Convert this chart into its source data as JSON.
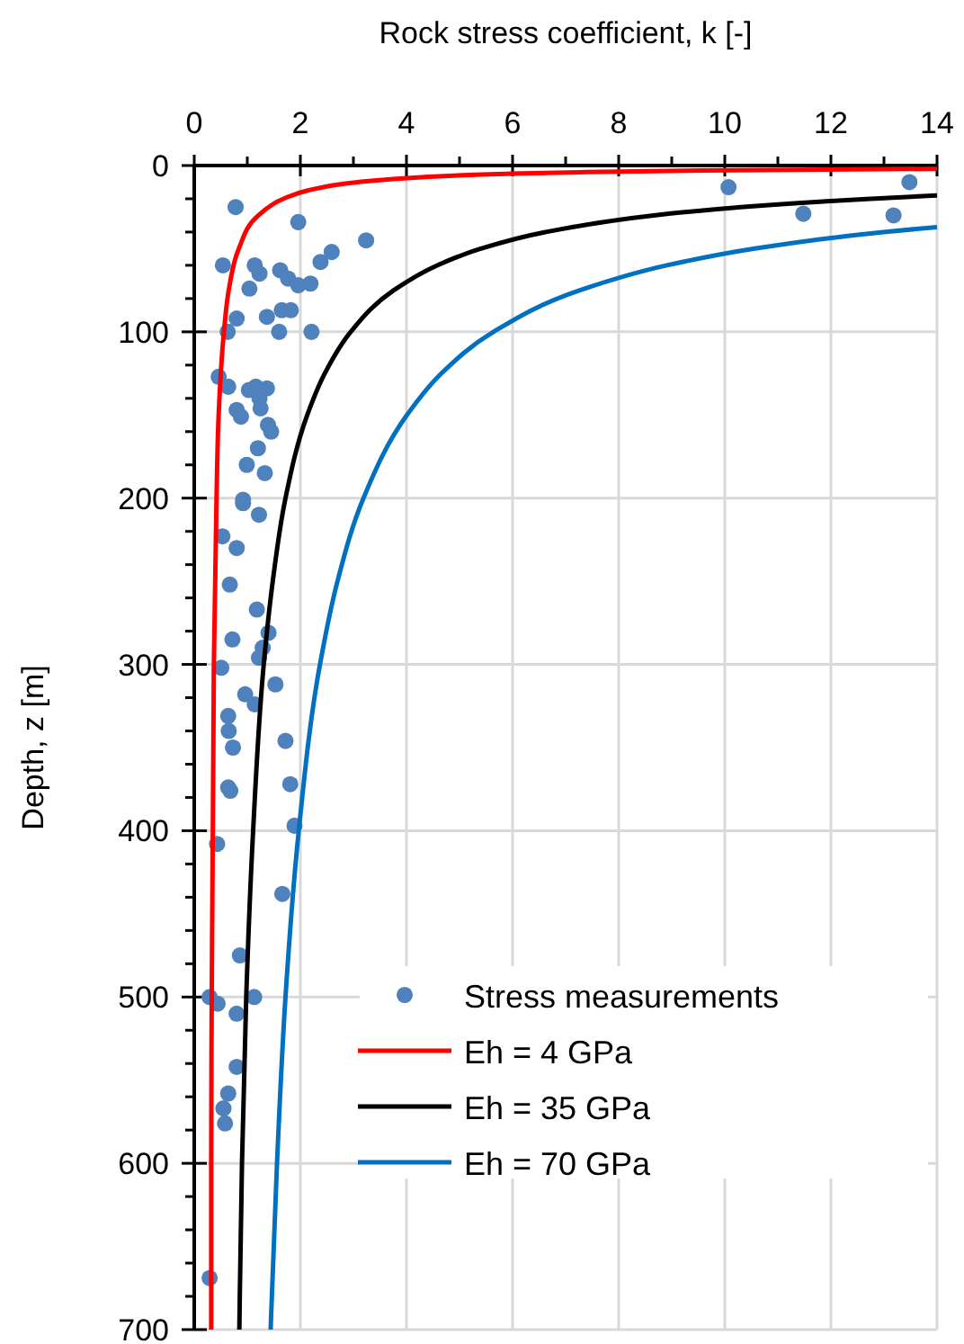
{
  "chart_data": {
    "type": "line",
    "xlabel": "Rock stress coefficient, k [-]",
    "ylabel": "Depth, z [m]",
    "xlim": [
      0,
      14
    ],
    "xticks": [
      0,
      {
        "value": 1,
        "label": null
      },
      2,
      {
        "value": 3,
        "label": null
      },
      4,
      {
        "value": 5,
        "label": null
      },
      6,
      {
        "value": 7,
        "label": null
      },
      8,
      {
        "value": 9,
        "label": null
      },
      10,
      {
        "value": 11,
        "label": null
      },
      12,
      {
        "value": 13,
        "label": null
      },
      14
    ],
    "ylim": [
      700,
      0
    ],
    "yticks": [
      0,
      {
        "value": 20,
        "label": null
      },
      {
        "value": 40,
        "label": null
      },
      {
        "value": 60,
        "label": null
      },
      {
        "value": 80,
        "label": null
      },
      100,
      {
        "value": 120,
        "label": null
      },
      {
        "value": 140,
        "label": null
      },
      {
        "value": 160,
        "label": null
      },
      {
        "value": 180,
        "label": null
      },
      200,
      {
        "value": 220,
        "label": null
      },
      {
        "value": 240,
        "label": null
      },
      {
        "value": 260,
        "label": null
      },
      {
        "value": 280,
        "label": null
      },
      300,
      {
        "value": 320,
        "label": null
      },
      {
        "value": 340,
        "label": null
      },
      {
        "value": 360,
        "label": null
      },
      {
        "value": 380,
        "label": null
      },
      400,
      {
        "value": 420,
        "label": null
      },
      {
        "value": 440,
        "label": null
      },
      {
        "value": 460,
        "label": null
      },
      {
        "value": 480,
        "label": null
      },
      500,
      {
        "value": 520,
        "label": null
      },
      {
        "value": 540,
        "label": null
      },
      {
        "value": 560,
        "label": null
      },
      {
        "value": 580,
        "label": null
      },
      600,
      {
        "value": 620,
        "label": null
      },
      {
        "value": 640,
        "label": null
      },
      {
        "value": 660,
        "label": null
      },
      {
        "value": 680,
        "label": null
      },
      700
    ],
    "grid": true,
    "legend": "bottom right",
    "line_style": "solid",
    "series": [
      {
        "name": "Stress measurements",
        "type": "scatter",
        "marker": "circle",
        "color": "#4f81bd",
        "x": [
          0.78,
          1.96,
          3.24,
          2.59,
          2.38,
          0.54,
          1.14,
          1.23,
          1.62,
          1.77,
          1.96,
          2.19,
          1.04,
          0.8,
          1.37,
          1.65,
          1.82,
          0.63,
          1.6,
          2.21,
          0.46,
          0.64,
          1.03,
          1.16,
          1.37,
          1.23,
          1.25,
          0.8,
          0.88,
          1.39,
          1.45,
          1.2,
          0.99,
          1.33,
          0.92,
          0.92,
          1.22,
          0.53,
          0.8,
          0.67,
          1.18,
          1.4,
          1.29,
          1.22,
          0.72,
          0.51,
          1.53,
          0.96,
          1.14,
          0.64,
          0.65,
          0.73,
          1.72,
          0.68,
          0.64,
          1.81,
          1.89,
          0.43,
          1.66,
          0.86,
          0.29,
          0.44,
          1.13,
          0.8,
          0.8,
          0.64,
          0.55,
          0.58,
          0.29,
          10.07,
          13.48,
          11.48,
          13.18
        ],
        "values": [
          25,
          34,
          45,
          52,
          58,
          60,
          60,
          65,
          63,
          68,
          72,
          71,
          74,
          92,
          91,
          87,
          87,
          100,
          100,
          100,
          127,
          133,
          135,
          133,
          134,
          140,
          146,
          147,
          151,
          156,
          160,
          170,
          180,
          185,
          201,
          203,
          210,
          223,
          230,
          252,
          267,
          281,
          290,
          296,
          285,
          302,
          312,
          318,
          324,
          331,
          340,
          350,
          346,
          376,
          374,
          372,
          397,
          408,
          438,
          475,
          500,
          504,
          500,
          510,
          542,
          558,
          567,
          576,
          669,
          13,
          10,
          29,
          30
        ]
      },
      {
        "name": "Eh = 4 GPa",
        "color": "#ff0000",
        "x": [
          14,
          9.61,
          7.28,
          5.88,
          4.28,
          3.08,
          2.14,
          1.68,
          1.21,
          0.84,
          0.65,
          0.56,
          0.46,
          0.42,
          0.37,
          0.35,
          0.33,
          0.32,
          0.32
        ],
        "values": [
          2,
          3,
          4,
          5,
          7,
          10,
          15,
          20,
          30,
          50,
          75,
          100,
          150,
          200,
          300,
          400,
          500,
          600,
          700
        ]
      },
      {
        "name": "Eh = 35 GPa",
        "color": "#000000",
        "x": [
          14,
          12.75,
          10.3,
          8.66,
          6.62,
          5.4,
          4.58,
          3.76,
          2.95,
          2.46,
          2.13,
          1.72,
          1.48,
          1.31,
          1.11,
          0.98,
          0.9,
          0.85
        ],
        "values": [
          18,
          20,
          25,
          30,
          40,
          50,
          60,
          75,
          100,
          125,
          150,
          200,
          250,
          300,
          400,
          500,
          600,
          700
        ]
      },
      {
        "name": "Eh = 70 GPa",
        "color": "#0070c0",
        "x": [
          14,
          12.99,
          10.54,
          8.91,
          7.27,
          5.64,
          4.66,
          4.01,
          3.19,
          2.7,
          2.37,
          1.97,
          1.72,
          1.56,
          1.44
        ],
        "values": [
          37,
          40,
          50,
          60,
          75,
          100,
          125,
          150,
          200,
          250,
          300,
          400,
          500,
          600,
          700
        ]
      }
    ]
  }
}
